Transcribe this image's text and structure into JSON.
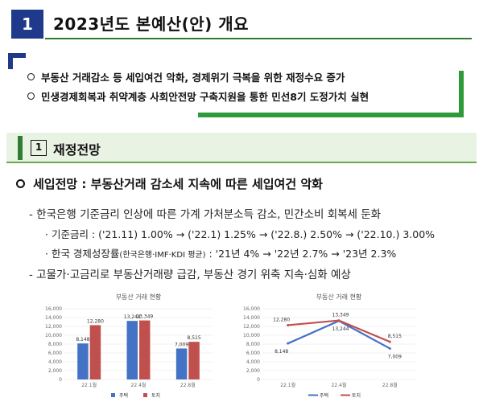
{
  "section": {
    "number": "1",
    "title": "2023년도 본예산(안) 개요"
  },
  "summary": [
    "부동산 거래감소 등 세입여건 악화, 경제위기 극복을 위한 재정수요 증가",
    "민생경제회복과 취약계층 사회안전망 구축지원을 통한 민선8기 도정가치 실현"
  ],
  "subsection": {
    "number": "1",
    "title": "재정전망"
  },
  "content": {
    "heading": "세입전망 : 부동산거래 감소세 지속에 따른 세입여건 악화",
    "line1": "- 한국은행 기준금리 인상에 따른 가계 가처분소득 감소, 민간소비 회복세 둔화",
    "line2": "· 기준금리 : ('21.11) 1.00% → ('22.1) 1.25% → ('22.8.) 2.50% → ('22.10.) 3.00%",
    "line3_main": "· 한국 경제성장률",
    "line3_small": "(한국은행·IMF·KDI 평균)",
    "line3_rest": " : '21년 4% → '22년 2.7% → '23년 2.3%",
    "line4": "- 고물가·고금리로 부동산거래량 급감, 부동산 경기 위축 지속·심화 예상"
  },
  "chart_data": [
    {
      "type": "bar",
      "title": "부동산 거래 현황",
      "categories": [
        "22.1월",
        "22.4월",
        "22.8월"
      ],
      "series": [
        {
          "name": "주택",
          "values": [
            8148,
            13244,
            7009
          ],
          "color": "#4472c4"
        },
        {
          "name": "토지",
          "values": [
            12280,
            13349,
            8515
          ],
          "color": "#c0504d"
        }
      ],
      "yticks": [
        "0",
        "2,000",
        "4,000",
        "6,000",
        "8,000",
        "10,000",
        "12,000",
        "14,000",
        "16,000"
      ],
      "ylim": [
        0,
        16000
      ],
      "value_labels": [
        [
          "8,148",
          "13,244",
          "7,009"
        ],
        [
          "12,280",
          "13,349",
          "8,515"
        ]
      ],
      "legend": "bottom"
    },
    {
      "type": "line",
      "title": "부동산 거래 현황",
      "categories": [
        "22.1월",
        "22.4월",
        "22.8월"
      ],
      "series": [
        {
          "name": "주택",
          "values": [
            8148,
            13244,
            7009
          ],
          "color": "#4472c4"
        },
        {
          "name": "토지",
          "values": [
            12280,
            13349,
            8515
          ],
          "color": "#c0504d"
        }
      ],
      "yticks": [
        "0",
        "2,000",
        "4,000",
        "6,000",
        "8,000",
        "10,000",
        "12,000",
        "14,000",
        "16,000"
      ],
      "ylim": [
        0,
        16000
      ],
      "value_labels": [
        [
          "8,148",
          "13,244",
          "7,009"
        ],
        [
          "12,280",
          "13,349",
          "8,515"
        ]
      ],
      "legend": "bottom"
    }
  ]
}
